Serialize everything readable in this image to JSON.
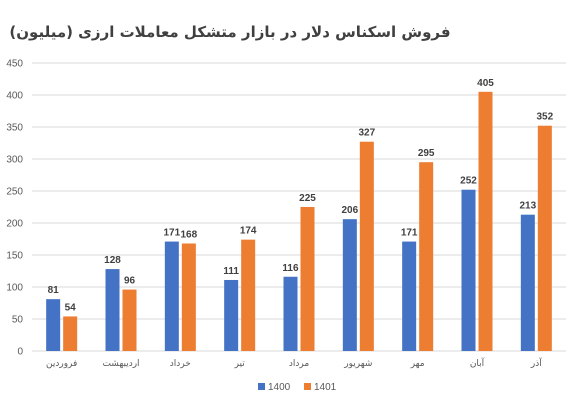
{
  "chart_data": {
    "type": "bar",
    "title": "فروش اسکناس دلار در بازار متشکل معاملات ارزی (میلیون)",
    "categories": [
      "فروردین",
      "اردیبهشت",
      "خرداد",
      "تیر",
      "مرداد",
      "شهریور",
      "مهر",
      "آبان",
      "آذر"
    ],
    "series": [
      {
        "name": "1400",
        "values": [
          81,
          128,
          171,
          111,
          116,
          206,
          171,
          252,
          213
        ],
        "color": "#4472C4"
      },
      {
        "name": "1401",
        "values": [
          54,
          96,
          168,
          174,
          225,
          327,
          295,
          405,
          352
        ],
        "color": "#ED7D31"
      }
    ],
    "yticks": [
      0,
      50,
      100,
      150,
      200,
      250,
      300,
      350,
      400,
      450
    ],
    "ylim": [
      0,
      450
    ],
    "grid": true,
    "legend": "bottom-center",
    "data_labels": true,
    "grid_color": "#D9D9D9",
    "text_color": "#595959"
  }
}
